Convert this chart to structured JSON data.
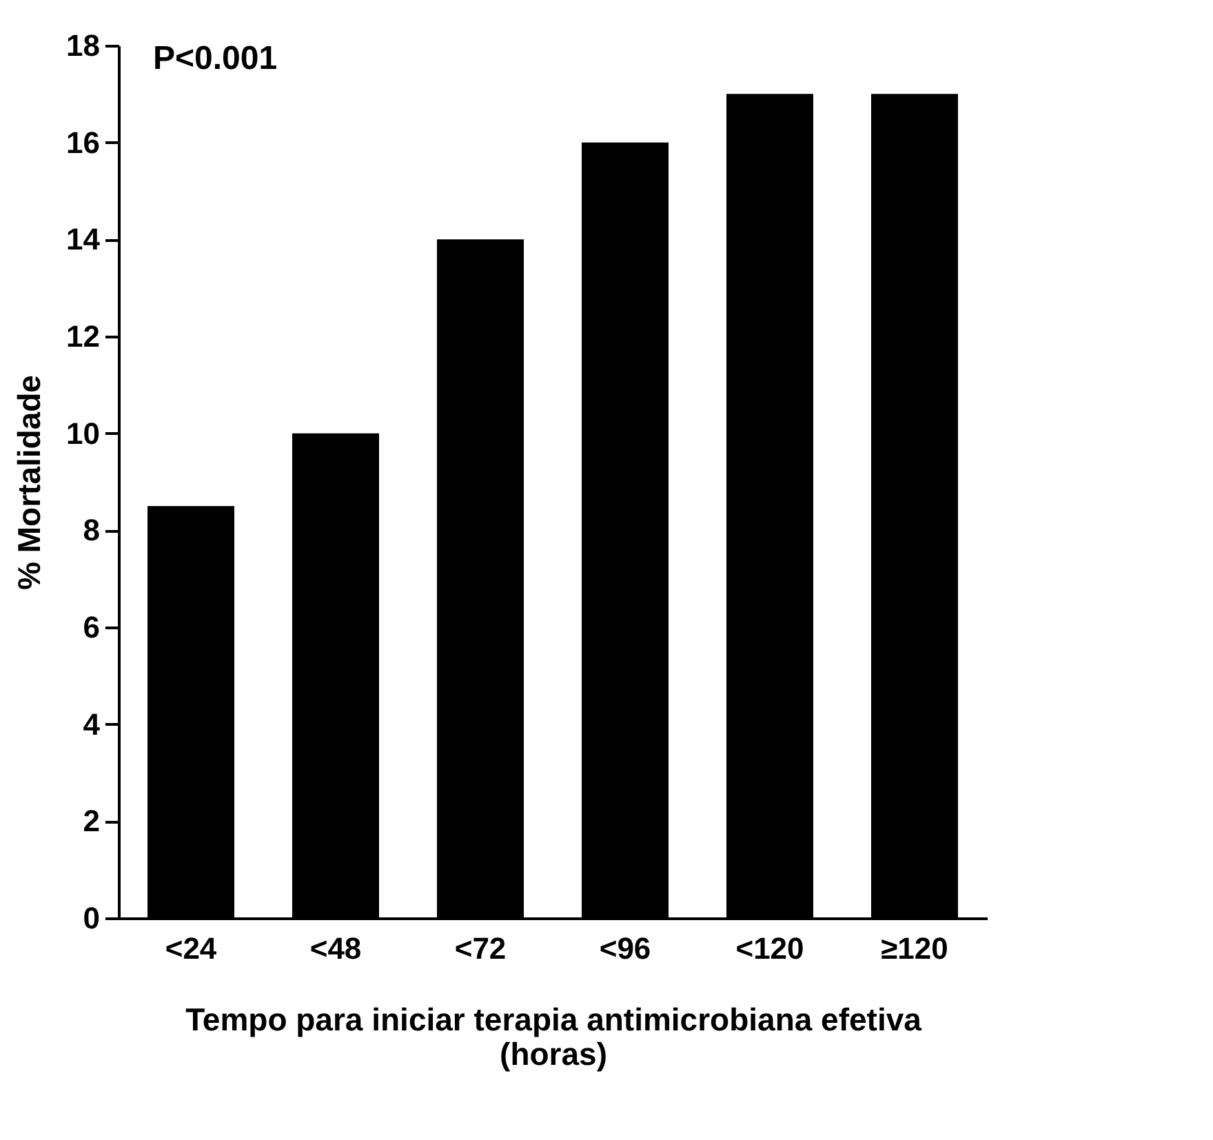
{
  "chart_data": {
    "type": "bar",
    "categories": [
      "<24",
      "<48",
      "<72",
      "<96",
      "<120",
      "≥120"
    ],
    "values": [
      8.5,
      10,
      14,
      16,
      17,
      17
    ],
    "color": "#000000",
    "ylim": [
      0,
      18
    ],
    "yticks": [
      0,
      2,
      4,
      6,
      8,
      10,
      12,
      14,
      16,
      18
    ],
    "ylabel": "% Mortalidade",
    "xlabel": "Tempo para iniciar terapia antimicrobiana efetiva\n(horas)",
    "annotations": [
      "P<0.001"
    ]
  }
}
